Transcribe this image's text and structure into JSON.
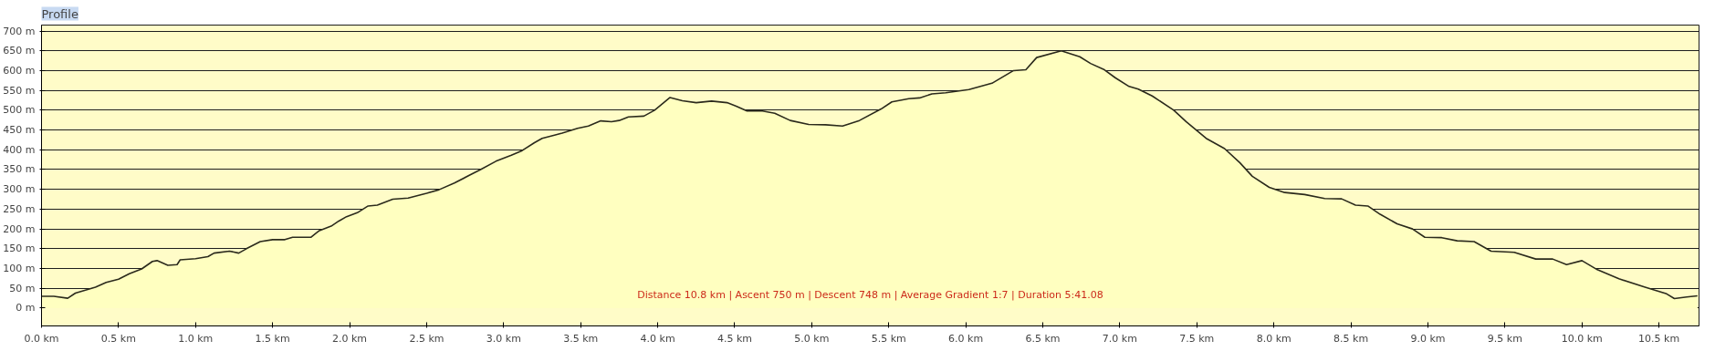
{
  "chart_data": {
    "type": "area",
    "title": "Profile",
    "annotations": [
      "Distance 10.8 km | Ascent 750 m | Descent 748 m | Average Gradient 1:7 | Duration 5:41.08"
    ],
    "x": [
      0,
      0.08,
      0.17,
      0.22,
      0.35,
      0.42,
      0.5,
      0.57,
      0.65,
      0.72,
      0.75,
      0.82,
      0.88,
      0.9,
      1.0,
      1.08,
      1.12,
      1.22,
      1.28,
      1.33,
      1.42,
      1.5,
      1.58,
      1.63,
      1.75,
      1.8,
      1.88,
      1.93,
      1.98,
      2.05,
      2.12,
      2.18,
      2.28,
      2.38,
      2.5,
      2.58,
      2.68,
      2.78,
      2.85,
      2.95,
      3.05,
      3.12,
      3.2,
      3.25,
      3.33,
      3.38,
      3.48,
      3.55,
      3.63,
      3.7,
      3.75,
      3.81,
      3.91,
      3.98,
      4.08,
      4.16,
      4.25,
      4.35,
      4.45,
      4.51,
      4.58,
      4.68,
      4.76,
      4.86,
      4.98,
      5.09,
      5.2,
      5.31,
      5.45,
      5.52,
      5.63,
      5.7,
      5.78,
      5.87,
      6.02,
      6.17,
      6.31,
      6.39,
      6.46,
      6.62,
      6.74,
      6.81,
      6.9,
      6.97,
      7.06,
      7.12,
      7.21,
      7.35,
      7.43,
      7.56,
      7.68,
      7.78,
      7.86,
      7.97,
      8.07,
      8.2,
      8.33,
      8.44,
      8.53,
      8.61,
      8.69,
      8.8,
      8.9,
      8.98,
      9.09,
      9.19,
      9.3,
      9.41,
      9.56,
      9.7,
      9.81,
      9.9,
      10.0,
      10.1,
      10.24,
      10.41,
      10.55,
      10.6,
      10.68,
      10.75
    ],
    "series": [
      {
        "color": "#ffffc0",
        "values": [
          30,
          30,
          25,
          38,
          53,
          65,
          73,
          87,
          99,
          118,
          120,
          108,
          110,
          122,
          125,
          130,
          139,
          144,
          139,
          150,
          168,
          173,
          173,
          179,
          179,
          195,
          207,
          220,
          231,
          241,
          258,
          260,
          275,
          278,
          290,
          299,
          316,
          336,
          350,
          371,
          386,
          398,
          418,
          429,
          437,
          442,
          454,
          460,
          473,
          471,
          474,
          483,
          485,
          500,
          532,
          524,
          519,
          523,
          519,
          510,
          498,
          498,
          492,
          474,
          464,
          463,
          460,
          474,
          503,
          521,
          529,
          531,
          541,
          544,
          552,
          568,
          600,
          602,
          633,
          650,
          635,
          618,
          602,
          582,
          560,
          553,
          536,
          500,
          471,
          429,
          403,
          367,
          333,
          305,
          292,
          287,
          277,
          276,
          260,
          258,
          237,
          213,
          200,
          179,
          178,
          170,
          168,
          144,
          141,
          124,
          124,
          110,
          120,
          97,
          74,
          53,
          36,
          24,
          28,
          31
        ]
      }
    ],
    "xlim": [
      0,
      10.76
    ],
    "ylim": [
      -45,
      715
    ],
    "xticks": [
      {
        "value": 0,
        "label": "0.0 km"
      },
      {
        "value": 0.5,
        "label": "0.5 km"
      },
      {
        "value": 1,
        "label": "1.0 km"
      },
      {
        "value": 1.5,
        "label": "1.5 km"
      },
      {
        "value": 2,
        "label": "2.0 km"
      },
      {
        "value": 2.5,
        "label": "2.5 km"
      },
      {
        "value": 3,
        "label": "3.0 km"
      },
      {
        "value": 3.5,
        "label": "3.5 km"
      },
      {
        "value": 4,
        "label": "4.0 km"
      },
      {
        "value": 4.5,
        "label": "4.5 km"
      },
      {
        "value": 5,
        "label": "5.0 km"
      },
      {
        "value": 5.5,
        "label": "5.5 km"
      },
      {
        "value": 6,
        "label": "6.0 km"
      },
      {
        "value": 6.5,
        "label": "6.5 km"
      },
      {
        "value": 7,
        "label": "7.0 km"
      },
      {
        "value": 7.5,
        "label": "7.5 km"
      },
      {
        "value": 8,
        "label": "8.0 km"
      },
      {
        "value": 8.5,
        "label": "8.5 km"
      },
      {
        "value": 9,
        "label": "9.0 km"
      },
      {
        "value": 9.5,
        "label": "9.5 km"
      },
      {
        "value": 10,
        "label": "10.0 km"
      },
      {
        "value": 10.5,
        "label": "10.5 km"
      }
    ],
    "yticks": [
      {
        "value": 0,
        "label": "0 m"
      },
      {
        "value": 50,
        "label": "50 m"
      },
      {
        "value": 100,
        "label": "100 m"
      },
      {
        "value": 150,
        "label": "150 m"
      },
      {
        "value": 200,
        "label": "200 m"
      },
      {
        "value": 250,
        "label": "250 m"
      },
      {
        "value": 300,
        "label": "300 m"
      },
      {
        "value": 350,
        "label": "350 m"
      },
      {
        "value": 400,
        "label": "400 m"
      },
      {
        "value": 450,
        "label": "450 m"
      },
      {
        "value": 500,
        "label": "500 m"
      },
      {
        "value": 550,
        "label": "550 m"
      },
      {
        "value": 600,
        "label": "600 m"
      },
      {
        "value": 650,
        "label": "650 m"
      },
      {
        "value": 700,
        "label": "700 m"
      }
    ],
    "grid": "y"
  }
}
